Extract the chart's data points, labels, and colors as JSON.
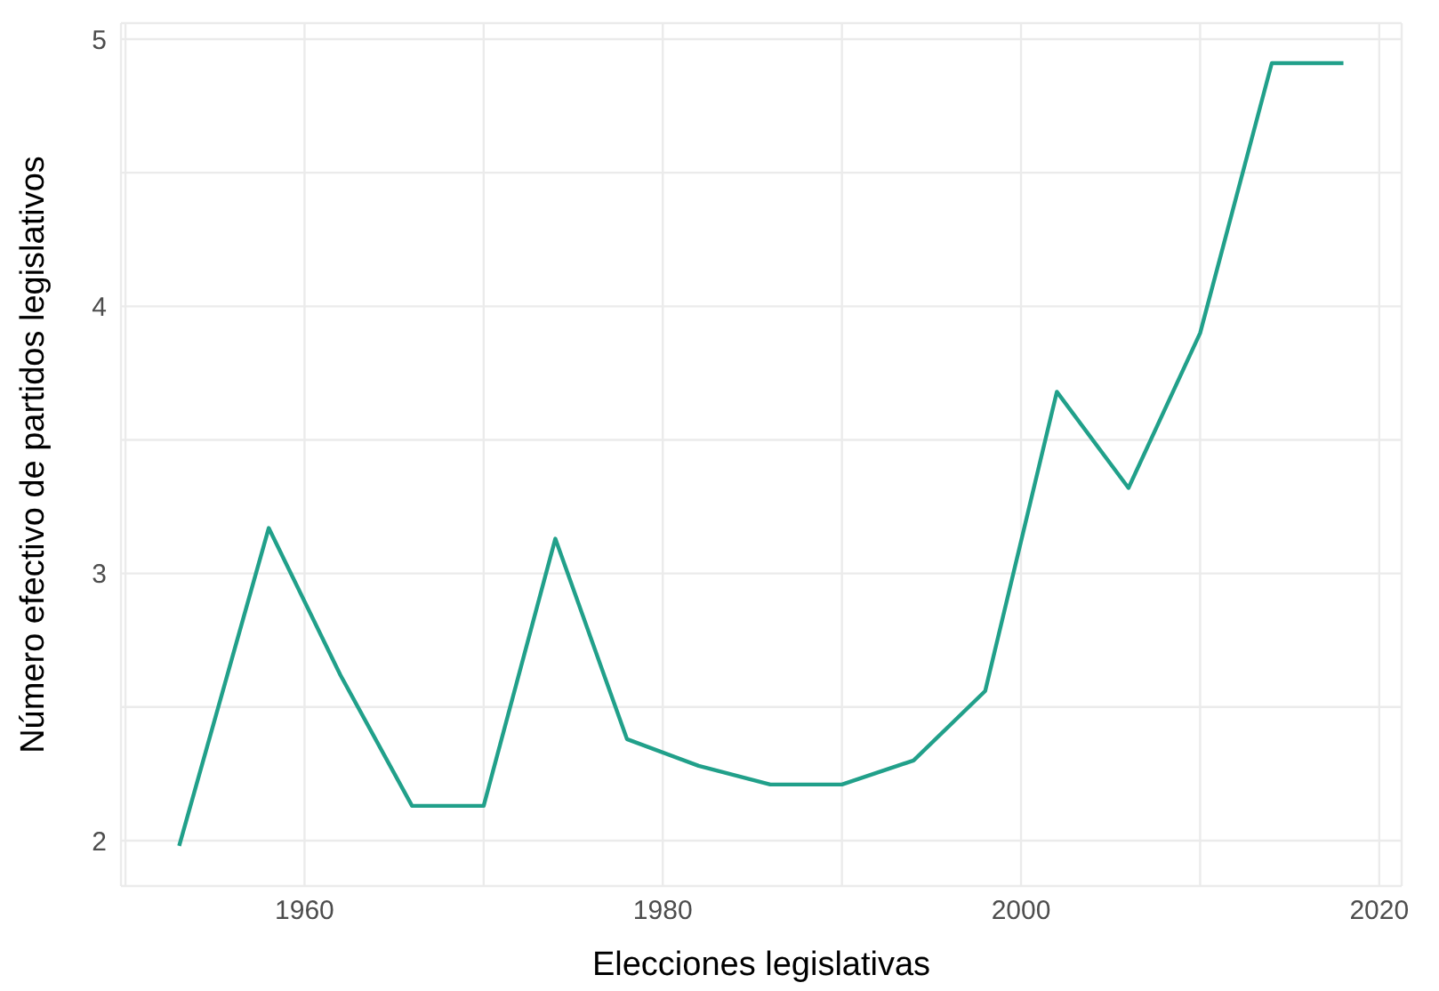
{
  "chart_data": {
    "type": "line",
    "xlabel": "Elecciones legislativas",
    "ylabel": "Número efectivo de partidos legislativos",
    "x": [
      1953,
      1958,
      1962,
      1966,
      1970,
      1974,
      1978,
      1982,
      1986,
      1990,
      1994,
      1998,
      2002,
      2006,
      2010,
      2014,
      2018
    ],
    "series": [
      {
        "color": "#21a08a",
        "values": [
          1.98,
          3.17,
          2.62,
          2.13,
          2.13,
          3.13,
          2.38,
          2.28,
          2.21,
          2.21,
          2.3,
          2.56,
          3.68,
          3.32,
          3.9,
          4.91,
          4.91
        ]
      }
    ],
    "xlim": [
      1949.75,
      2021.25
    ],
    "xticks": [
      {
        "value": 1950,
        "label": null
      },
      1960,
      {
        "value": 1970,
        "label": null
      },
      1980,
      {
        "value": 1990,
        "label": null
      },
      2000,
      {
        "value": 2010,
        "label": null
      },
      2020
    ],
    "ylim": [
      1.83,
      5.06
    ],
    "yticks": [
      2,
      {
        "value": 2.5,
        "label": null
      },
      3,
      {
        "value": 3.5,
        "label": null
      },
      4,
      {
        "value": 4.5,
        "label": null
      },
      5
    ],
    "grid": true,
    "marker": "none",
    "line_style": "solid",
    "legend": false
  }
}
